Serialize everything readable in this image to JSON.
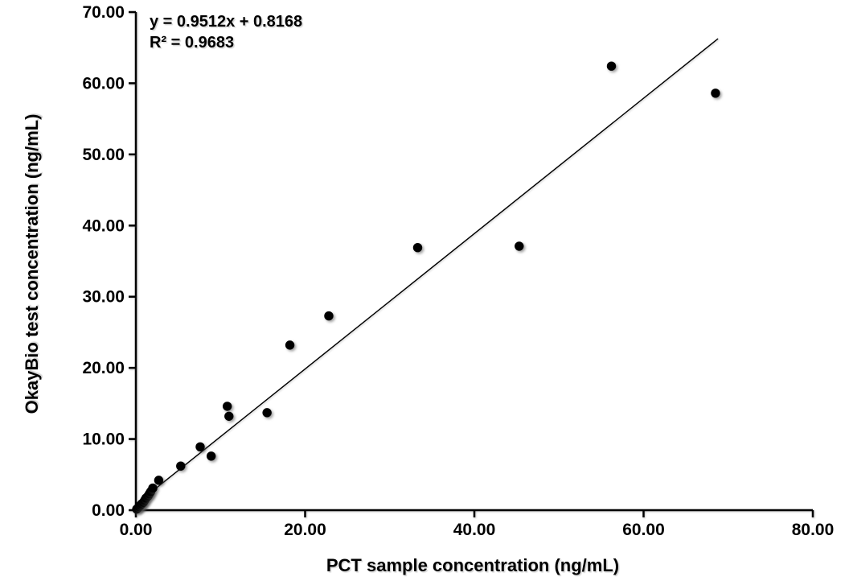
{
  "chart_data": {
    "type": "scatter",
    "title": "",
    "xlabel": "PCT sample concentration (ng/mL)",
    "ylabel": "OkayBio test concentration (ng/mL)",
    "xlim": [
      0,
      80
    ],
    "ylim": [
      0,
      70
    ],
    "grid": false,
    "legend": "none",
    "x_ticks": [
      0,
      20,
      40,
      60,
      80
    ],
    "x_tick_labels": [
      "0.00",
      "20.00",
      "40.00",
      "60.00",
      "80.00"
    ],
    "y_ticks": [
      0,
      10,
      20,
      30,
      40,
      50,
      60,
      70
    ],
    "y_tick_labels": [
      "0.00",
      "10.00",
      "20.00",
      "30.00",
      "40.00",
      "50.00",
      "60.00",
      "70.00"
    ],
    "points": [
      [
        0.1,
        0.15
      ],
      [
        0.25,
        0.3
      ],
      [
        0.4,
        0.5
      ],
      [
        0.55,
        0.7
      ],
      [
        0.7,
        0.9
      ],
      [
        0.9,
        1.1
      ],
      [
        1.05,
        1.4
      ],
      [
        1.2,
        1.7
      ],
      [
        1.45,
        2.0
      ],
      [
        1.6,
        2.3
      ],
      [
        1.75,
        2.6
      ],
      [
        2.0,
        3.1
      ],
      [
        2.7,
        4.2
      ],
      [
        5.3,
        6.2
      ],
      [
        7.6,
        8.9
      ],
      [
        8.9,
        7.6
      ],
      [
        10.8,
        14.6
      ],
      [
        11.0,
        13.2
      ],
      [
        15.5,
        13.7
      ],
      [
        18.2,
        23.2
      ],
      [
        22.8,
        27.3
      ],
      [
        33.3,
        36.9
      ],
      [
        45.3,
        37.1
      ],
      [
        56.2,
        62.4
      ],
      [
        68.5,
        58.6
      ]
    ],
    "trendline": {
      "slope": 0.9512,
      "intercept": 0.8168,
      "x_start": 0,
      "x_end": 68.8
    },
    "annotation": {
      "equation": "y = 0.9512x + 0.8168",
      "r_squared": "R² = 0.9683"
    },
    "colors": {
      "point": "#000000",
      "trendline": "#000000",
      "axis": "#000000",
      "text": "#000000",
      "background": "#ffffff"
    }
  }
}
